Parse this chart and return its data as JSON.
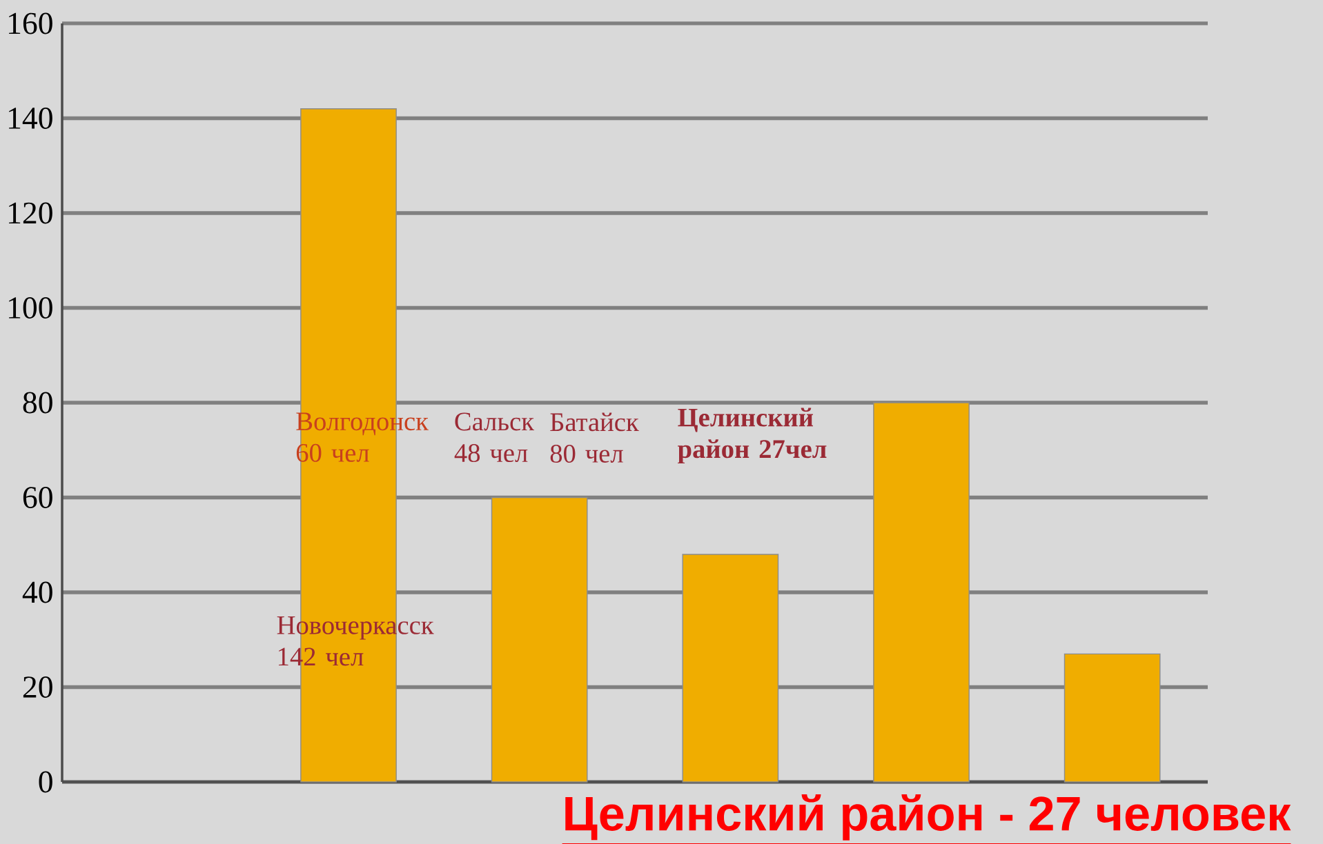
{
  "chart_data": {
    "type": "bar",
    "categories": [
      null,
      null,
      null,
      null,
      null,
      null
    ],
    "values": [
      null,
      142,
      60,
      48,
      80,
      27
    ],
    "color": "#f0ad00",
    "ylim": [
      0,
      160
    ],
    "yticks": [
      0,
      20,
      40,
      60,
      80,
      100,
      120,
      140,
      160
    ],
    "grid": "y",
    "annotations": [
      "Новочеркасск 142 чел",
      "Волгодонск 60 чел",
      "Сальск 48 чел",
      "Батайск 80 чел",
      "Целинский район 27чел",
      "Целинский район   -    27 человек"
    ]
  }
}
